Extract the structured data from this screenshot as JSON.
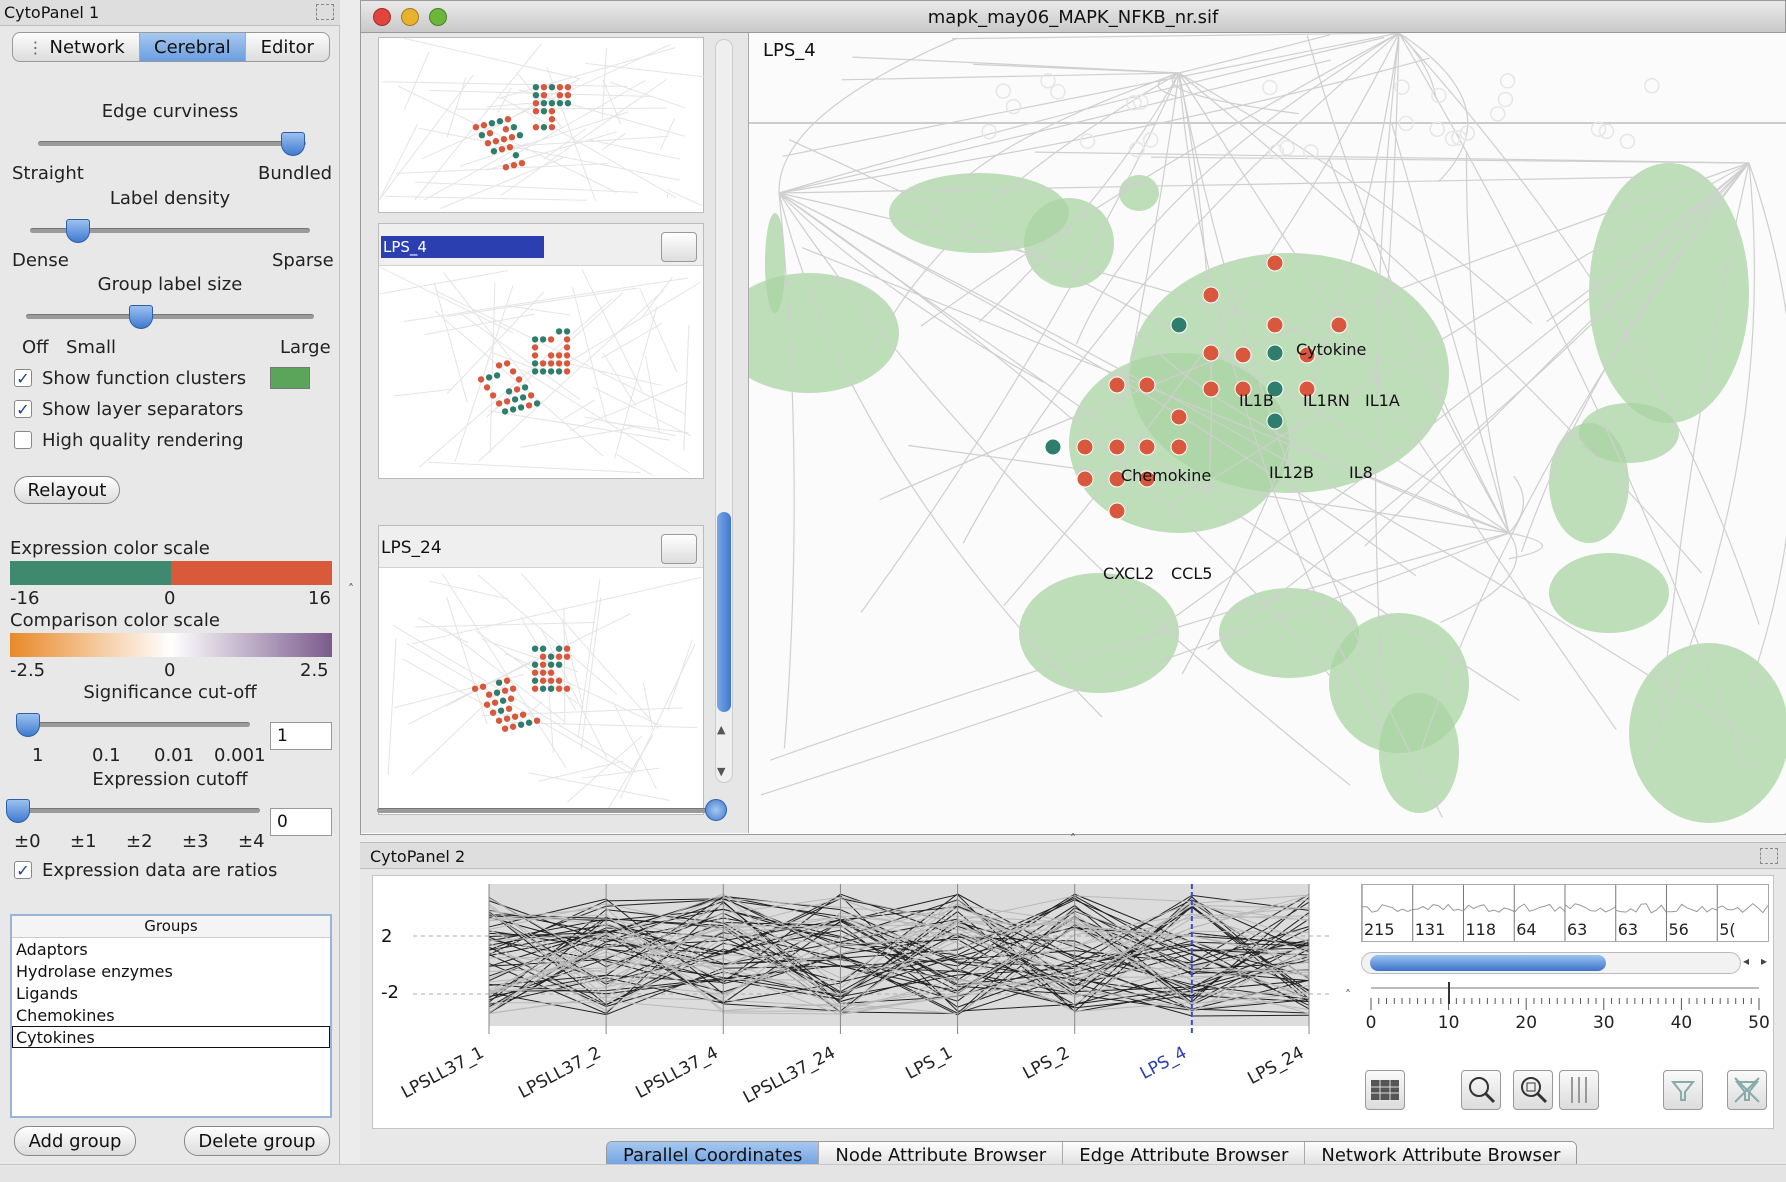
{
  "cytopanel1": {
    "title": "CytoPanel 1",
    "tabs": [
      "Network",
      "Cerebral",
      "Editor"
    ],
    "selected_tab": "Cerebral",
    "edge_curviness": {
      "title": "Edge curviness",
      "min_label": "Straight",
      "max_label": "Bundled",
      "value_fraction": 0.95
    },
    "label_density": {
      "title": "Label density",
      "min_label": "Dense",
      "max_label": "Sparse",
      "value_fraction": 0.17
    },
    "group_label_size": {
      "title": "Group label size",
      "labels": [
        "Off",
        "Small",
        "Large"
      ],
      "value_fraction": 0.4
    },
    "checkboxes": [
      {
        "label": "Show function clusters",
        "checked": true,
        "check": "✓"
      },
      {
        "label": "Show layer separators",
        "checked": true,
        "check": "✓"
      },
      {
        "label": "High quality rendering",
        "checked": false,
        "check": ""
      }
    ],
    "cluster_color": "#5aa55a",
    "relayout_button": "Relayout",
    "expression_scale": {
      "title": "Expression color scale",
      "min": "-16",
      "mid": "0",
      "max": "16",
      "low_color": "#3f8a6e",
      "high_color": "#d85a3a"
    },
    "comparison_scale": {
      "title": "Comparison color scale",
      "min": "-2.5",
      "mid": "0",
      "max": "2.5",
      "low_color": "#e8892a",
      "high_color": "#7a5b8c"
    },
    "significance": {
      "title": "Significance cut-off",
      "ticks": [
        "1",
        "0.1",
        "0.01",
        "0.001"
      ],
      "value": "1",
      "value_fraction": 0.0
    },
    "expression_cutoff": {
      "title": "Expression cutoff",
      "ticks": [
        "±0",
        "±1",
        "±2",
        "±3",
        "±4"
      ],
      "value": "0",
      "value_fraction": 0.0
    },
    "ratios_checkbox": {
      "label": "Expression data are ratios",
      "checked": true,
      "check": "✓"
    },
    "groups": {
      "header": "Groups",
      "items": [
        "Adaptors",
        "Hydrolase enzymes",
        "Ligands",
        "Chemokines",
        "Cytokines"
      ],
      "selected": "Cytokines"
    },
    "add_group_button": "Add group",
    "delete_group_button": "Delete group"
  },
  "network_window": {
    "title": "mapk_may06_MAPK_NFKB_nr.sif",
    "view_label": "LPS_4",
    "thumbnails": [
      {
        "label": "",
        "selected": false
      },
      {
        "label": "LPS_4",
        "selected": true
      },
      {
        "label": "LPS_24",
        "selected": false
      }
    ],
    "clusters": [
      {
        "name": "Cytokine",
        "genes": [
          "IL1B",
          "IL1RN",
          "IL1A",
          "IL12B",
          "IL8"
        ]
      },
      {
        "name": "Chemokine",
        "genes": [
          "CXCL2",
          "CCL5"
        ]
      }
    ]
  },
  "cytopanel2": {
    "title": "CytoPanel 2",
    "y_ticks": [
      "2",
      "-2"
    ],
    "axes": [
      "LPSLL37_1",
      "LPSLL37_2",
      "LPSLL37_4",
      "LPSLL37_24",
      "LPS_1",
      "LPS_2",
      "LPS_4",
      "LPS_24"
    ],
    "highlighted_axis": "LPS_4",
    "histogram_counts": [
      "215",
      "131",
      "118",
      "64",
      "63",
      "63",
      "56",
      "5("
    ],
    "scale_ticks": [
      "0",
      "10",
      "20",
      "30",
      "40",
      "50"
    ],
    "tabs": [
      "Parallel Coordinates",
      "Node Attribute Browser",
      "Edge Attribute Browser",
      "Network Attribute Browser"
    ],
    "selected_tab": "Parallel Coordinates"
  },
  "colors": {
    "node_red": "#d9573c",
    "node_teal": "#2f7d6d",
    "cluster_green": "#a9d3a3",
    "selection_blue": "#2b3fb0"
  }
}
